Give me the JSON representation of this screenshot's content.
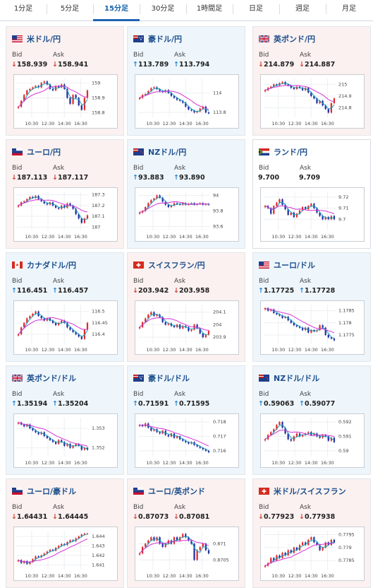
{
  "tabs": [
    {
      "label": "1分足",
      "active": false
    },
    {
      "label": "5分足",
      "active": false
    },
    {
      "label": "15分足",
      "active": true
    },
    {
      "label": "30分足",
      "active": false
    },
    {
      "label": "1時間足",
      "active": false
    },
    {
      "label": "日足",
      "active": false
    },
    {
      "label": "週足",
      "active": false
    },
    {
      "label": "月足",
      "active": false
    }
  ],
  "labels": {
    "bid": "Bid",
    "ask": "Ask"
  },
  "colors": {
    "down_bg": "#fbf1f0",
    "up_bg": "#eef6fc",
    "bull": "#e02b2b",
    "bear": "#1f2fa0",
    "ma_short": "#1aa0b8",
    "ma_long": "#d633d6",
    "arrow_up": "#1f7fcb",
    "arrow_down": "#d23a2f"
  },
  "pairs": [
    {
      "name": "米ドル/円",
      "flag": "flag-us",
      "dir": "down",
      "bid": "158.939",
      "ask": "158.941",
      "chart_data": {
        "type": "line",
        "x_ticks": [
          "10:30",
          "12:30",
          "14:30",
          "16:30"
        ],
        "y_ticks": [
          "159",
          "158.9",
          "158.8"
        ],
        "ylim": [
          158.77,
          159.03
        ],
        "close": [
          158.84,
          158.88,
          158.92,
          158.95,
          158.96,
          158.97,
          158.98,
          158.97,
          159.0,
          159.01,
          158.99,
          158.96,
          158.95,
          158.98,
          158.97,
          158.99,
          158.96,
          158.9,
          158.86,
          158.92,
          158.9,
          158.85,
          158.82,
          158.9,
          158.95
        ]
      }
    },
    {
      "name": "豪ドル/円",
      "flag": "flag-au",
      "dir": "up",
      "bid": "113.789",
      "ask": "113.794",
      "chart_data": {
        "type": "line",
        "x_ticks": [
          "10:30",
          "12:30",
          "14:30",
          "16:30"
        ],
        "y_ticks": [
          "114",
          "113.8"
        ],
        "ylim": [
          113.75,
          114.15
        ],
        "close": [
          113.95,
          113.98,
          113.99,
          114.02,
          114.05,
          114.06,
          114.04,
          114.02,
          114.01,
          114.03,
          114.0,
          113.97,
          113.95,
          113.93,
          113.92,
          113.9,
          113.86,
          113.83,
          113.82,
          113.8,
          113.81,
          113.84,
          113.86,
          113.8,
          113.79
        ]
      }
    },
    {
      "name": "英ポンド/円",
      "flag": "flag-uk",
      "dir": "down",
      "bid": "214.879",
      "ask": "214.887",
      "chart_data": {
        "type": "line",
        "x_ticks": [
          "10:30",
          "12:30",
          "14:30",
          "16:30"
        ],
        "y_ticks": [
          "215",
          "214.9",
          "214.8"
        ],
        "ylim": [
          214.72,
          215.05
        ],
        "close": [
          214.95,
          214.97,
          214.98,
          215.0,
          214.99,
          215.01,
          215.02,
          215.0,
          214.99,
          214.97,
          214.96,
          214.98,
          214.97,
          214.95,
          214.97,
          214.93,
          214.9,
          214.88,
          214.84,
          214.86,
          214.82,
          214.79,
          214.76,
          214.84,
          214.88
        ]
      }
    },
    {
      "name": "ユーロ/円",
      "flag": "flag-eu",
      "dir": "down",
      "bid": "187.113",
      "ask": "187.117",
      "chart_data": {
        "type": "line",
        "x_ticks": [
          "10:30",
          "12:30",
          "14:30",
          "16:30"
        ],
        "y_ticks": [
          "187.3",
          "187.2",
          "187.1",
          "187"
        ],
        "ylim": [
          186.97,
          187.33
        ],
        "close": [
          187.2,
          187.23,
          187.24,
          187.26,
          187.28,
          187.27,
          187.29,
          187.26,
          187.24,
          187.22,
          187.21,
          187.23,
          187.2,
          187.18,
          187.17,
          187.2,
          187.18,
          187.22,
          187.2,
          187.17,
          187.12,
          187.08,
          187.04,
          187.08,
          187.11
        ]
      }
    },
    {
      "name": "NZドル/円",
      "flag": "flag-nz",
      "dir": "up",
      "bid": "93.883",
      "ask": "93.890",
      "chart_data": {
        "type": "line",
        "x_ticks": [
          "10:30",
          "12:30",
          "14:30",
          "16:30"
        ],
        "y_ticks": [
          "94",
          "93.8",
          "93.6"
        ],
        "ylim": [
          93.55,
          94.05
        ],
        "close": [
          93.78,
          93.8,
          93.85,
          93.9,
          93.94,
          93.96,
          94.0,
          93.97,
          93.92,
          93.88,
          93.85,
          93.87,
          93.9,
          93.89,
          93.88,
          93.9,
          93.88,
          93.89,
          93.9,
          93.88,
          93.89,
          93.9,
          93.88,
          93.89,
          93.88
        ]
      }
    },
    {
      "name": "ランド/円",
      "flag": "flag-za",
      "dir": "flat",
      "bid": "9.700",
      "ask": "9.709",
      "chart_data": {
        "type": "line",
        "x_ticks": [
          "10:30",
          "12:30",
          "14:30",
          "16:30"
        ],
        "y_ticks": [
          "9.72",
          "9.71",
          "9.7"
        ],
        "ylim": [
          9.69,
          9.725
        ],
        "close": [
          9.712,
          9.71,
          9.705,
          9.712,
          9.715,
          9.718,
          9.713,
          9.709,
          9.704,
          9.706,
          9.702,
          9.705,
          9.708,
          9.711,
          9.709,
          9.712,
          9.714,
          9.71,
          9.706,
          9.703,
          9.7,
          9.702,
          9.7,
          9.703,
          9.7
        ]
      }
    },
    {
      "name": "カナダドル/円",
      "flag": "flag-ca",
      "dir": "up",
      "bid": "116.451",
      "ask": "116.457",
      "chart_data": {
        "type": "line",
        "x_ticks": [
          "10:30",
          "12:30",
          "14:30",
          "16:30"
        ],
        "y_ticks": [
          "116.5",
          "116.45",
          "116.4"
        ],
        "ylim": [
          116.36,
          116.53
        ],
        "close": [
          116.4,
          116.43,
          116.45,
          116.47,
          116.48,
          116.49,
          116.5,
          116.48,
          116.47,
          116.46,
          116.47,
          116.46,
          116.45,
          116.44,
          116.45,
          116.46,
          116.45,
          116.43,
          116.42,
          116.41,
          116.4,
          116.39,
          116.38,
          116.42,
          116.45
        ]
      }
    },
    {
      "name": "スイスフラン/円",
      "flag": "flag-ch",
      "dir": "down",
      "bid": "203.942",
      "ask": "203.958",
      "chart_data": {
        "type": "line",
        "x_ticks": [
          "10:30",
          "12:30",
          "14:30",
          "16:30"
        ],
        "y_ticks": [
          "204.1",
          "204",
          "203.9"
        ],
        "ylim": [
          203.85,
          204.16
        ],
        "close": [
          203.98,
          204.02,
          204.05,
          204.08,
          204.1,
          204.07,
          204.08,
          204.06,
          204.02,
          204.0,
          204.01,
          203.99,
          203.98,
          204.0,
          203.97,
          203.99,
          203.98,
          203.95,
          203.96,
          204.0,
          203.97,
          203.93,
          203.9,
          203.92,
          203.95
        ]
      }
    },
    {
      "name": "ユーロ/ドル",
      "flag": "flag-us",
      "dir": "up",
      "bid": "1.17725",
      "ask": "1.17728",
      "chart_data": {
        "type": "line",
        "x_ticks": [
          "10:30",
          "12:30",
          "14:30",
          "16:30"
        ],
        "y_ticks": [
          "1.1785",
          "1.178",
          "1.1775"
        ],
        "ylim": [
          1.17715,
          1.17875
        ],
        "close": [
          1.1786,
          1.1785,
          1.17855,
          1.1784,
          1.17835,
          1.1783,
          1.1782,
          1.17825,
          1.1781,
          1.178,
          1.1779,
          1.17785,
          1.1778,
          1.1777,
          1.1778,
          1.1776,
          1.1777,
          1.17765,
          1.1777,
          1.1779,
          1.1778,
          1.1775,
          1.1774,
          1.17735,
          1.17728
        ]
      }
    },
    {
      "name": "英ポンド/ドル",
      "flag": "flag-uk",
      "dir": "up",
      "bid": "1.35194",
      "ask": "1.35204",
      "chart_data": {
        "type": "line",
        "x_ticks": [
          "10:30",
          "12:30",
          "14:30",
          "16:30"
        ],
        "y_ticks": [
          "1.353",
          "1.352"
        ],
        "ylim": [
          1.35155,
          1.35355
        ],
        "close": [
          1.3533,
          1.3532,
          1.3531,
          1.3532,
          1.353,
          1.3529,
          1.3528,
          1.3527,
          1.3528,
          1.3526,
          1.3525,
          1.3524,
          1.3523,
          1.3522,
          1.3524,
          1.3523,
          1.3521,
          1.3522,
          1.352,
          1.3521,
          1.3522,
          1.3521,
          1.3519,
          1.352,
          1.3519
        ]
      }
    },
    {
      "name": "豪ドル/ドル",
      "flag": "flag-au",
      "dir": "up",
      "bid": "0.71591",
      "ask": "0.71595",
      "chart_data": {
        "type": "line",
        "x_ticks": [
          "10:30",
          "12:30",
          "14:30",
          "16:30"
        ],
        "y_ticks": [
          "0.718",
          "0.717",
          "0.716"
        ],
        "ylim": [
          0.7156,
          0.7183
        ],
        "close": [
          0.7178,
          0.7177,
          0.7179,
          0.7176,
          0.7174,
          0.7175,
          0.7173,
          0.7172,
          0.7174,
          0.7171,
          0.717,
          0.7172,
          0.7169,
          0.717,
          0.7168,
          0.7167,
          0.7166,
          0.7165,
          0.7166,
          0.7164,
          0.7163,
          0.7162,
          0.7161,
          0.716,
          0.7159
        ]
      }
    },
    {
      "name": "NZドル/ドル",
      "flag": "flag-nz",
      "dir": "up",
      "bid": "0.59063",
      "ask": "0.59077",
      "chart_data": {
        "type": "line",
        "x_ticks": [
          "10:30",
          "12:30",
          "14:30",
          "16:30"
        ],
        "y_ticks": [
          "0.592",
          "0.591",
          "0.59"
        ],
        "ylim": [
          0.5896,
          0.5923
        ],
        "close": [
          0.5908,
          0.5911,
          0.5913,
          0.5915,
          0.5918,
          0.592,
          0.5916,
          0.5912,
          0.5908,
          0.5907,
          0.591,
          0.5912,
          0.591,
          0.5911,
          0.5912,
          0.5913,
          0.5911,
          0.5912,
          0.591,
          0.5909,
          0.5911,
          0.591,
          0.5907,
          0.5909,
          0.5906
        ]
      }
    },
    {
      "name": "ユーロ/豪ドル",
      "flag": "flag-eu",
      "dir": "down",
      "bid": "1.64431",
      "ask": "1.64445",
      "chart_data": {
        "type": "line",
        "x_ticks": [
          "10:30",
          "12:30",
          "14:30",
          "16:30"
        ],
        "y_ticks": [
          "1.644",
          "1.643",
          "1.642",
          "1.641"
        ],
        "ylim": [
          1.6405,
          1.6446
        ],
        "close": [
          1.6415,
          1.6412,
          1.6414,
          1.6411,
          1.6413,
          1.6416,
          1.6419,
          1.6418,
          1.642,
          1.6422,
          1.6424,
          1.6426,
          1.6425,
          1.6428,
          1.643,
          1.6432,
          1.6431,
          1.6434,
          1.6436,
          1.6435,
          1.6438,
          1.644,
          1.6442,
          1.6443,
          1.6443
        ]
      }
    },
    {
      "name": "ユーロ/英ポンド",
      "flag": "flag-eu",
      "dir": "down",
      "bid": "0.87073",
      "ask": "0.87081",
      "chart_data": {
        "type": "line",
        "x_ticks": [
          "10:30",
          "12:30",
          "14:30",
          "16:30"
        ],
        "y_ticks": [
          "0.871",
          "0.8705"
        ],
        "ylim": [
          0.8702,
          0.8714
        ],
        "close": [
          0.8707,
          0.8709,
          0.871,
          0.8711,
          0.8712,
          0.8711,
          0.8712,
          0.871,
          0.8709,
          0.871,
          0.8711,
          0.871,
          0.8712,
          0.8711,
          0.8712,
          0.8713,
          0.8712,
          0.8711,
          0.871,
          0.8705,
          0.8708,
          0.8709,
          0.871,
          0.8708,
          0.8707
        ]
      }
    },
    {
      "name": "米ドル/スイスフラン",
      "flag": "flag-ch",
      "dir": "down",
      "bid": "0.77923",
      "ask": "0.77938",
      "chart_data": {
        "type": "line",
        "x_ticks": [
          "10:30",
          "12:30",
          "14:30",
          "16:30"
        ],
        "y_ticks": [
          "0.7795",
          "0.779",
          "0.7785"
        ],
        "ylim": [
          0.77815,
          0.77965
        ],
        "close": [
          0.7783,
          0.7784,
          0.7786,
          0.7785,
          0.7787,
          0.7786,
          0.7788,
          0.7787,
          0.7789,
          0.7788,
          0.779,
          0.7789,
          0.7791,
          0.7792,
          0.7791,
          0.7793,
          0.7794,
          0.7792,
          0.7791,
          0.7789,
          0.779,
          0.7792,
          0.7791,
          0.7793,
          0.7792
        ]
      }
    }
  ]
}
